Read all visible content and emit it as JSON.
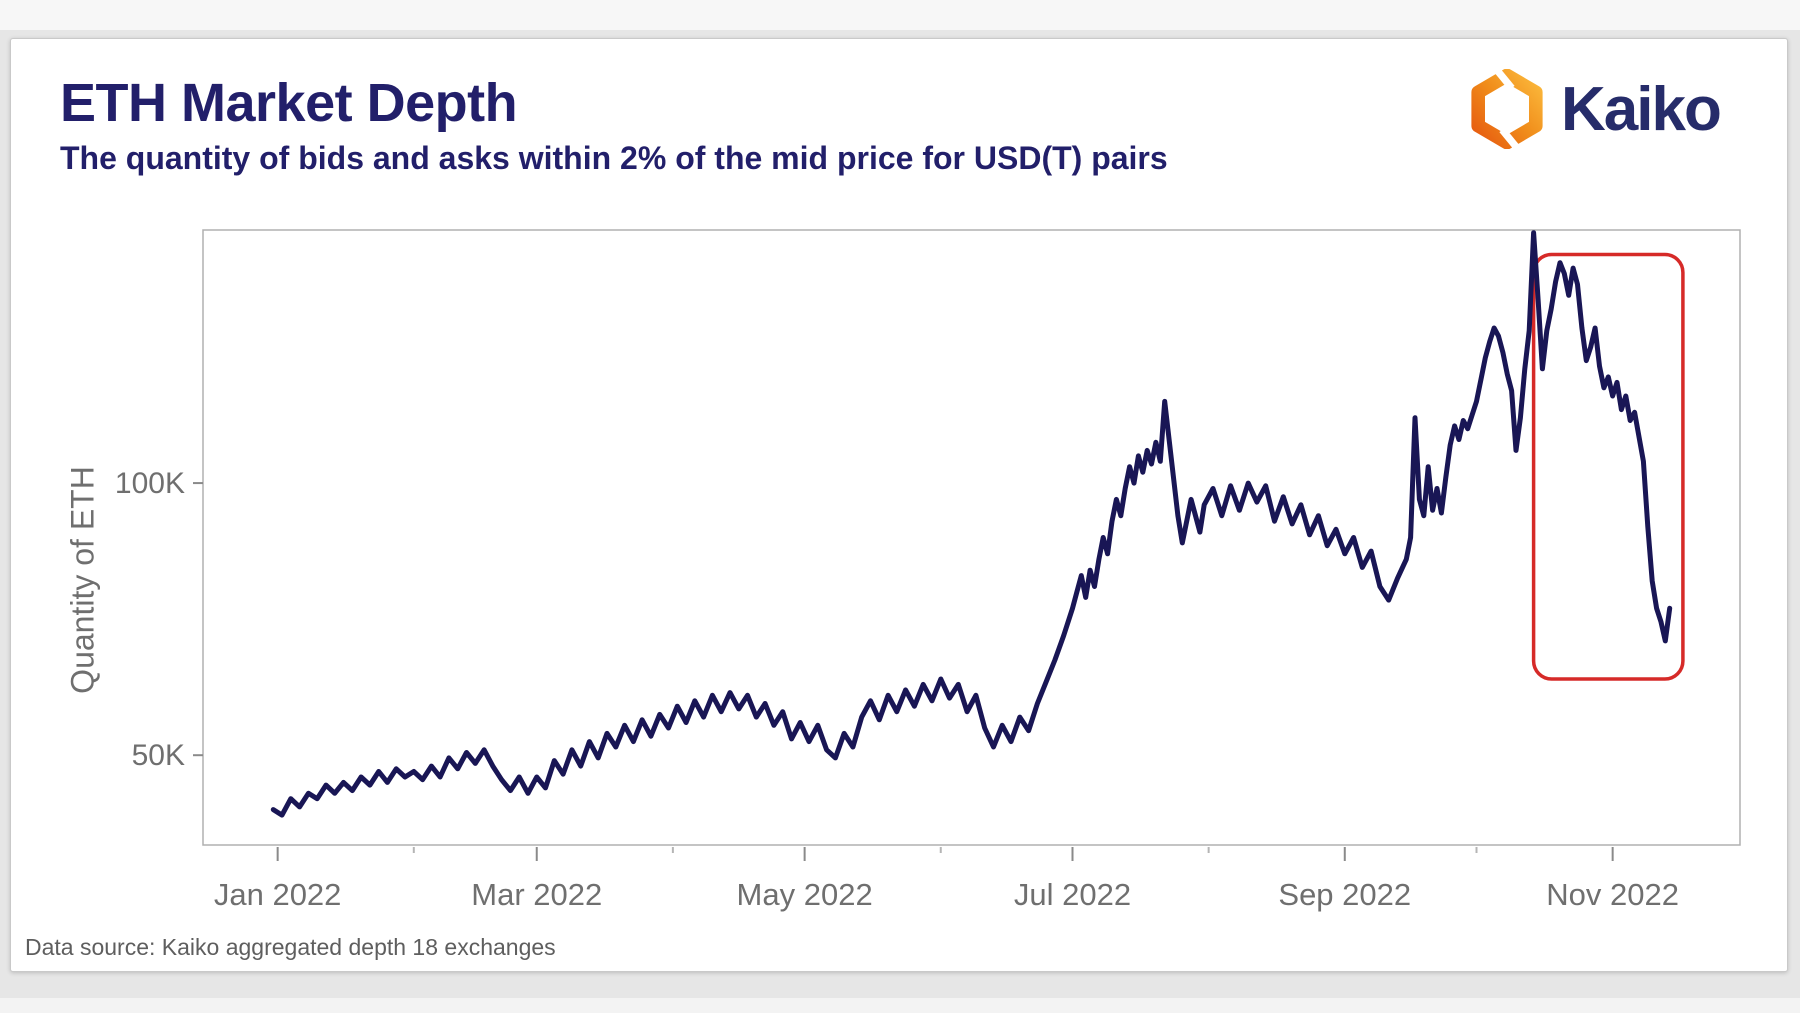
{
  "page": {
    "background": "#e6e6e6",
    "top_strip": "#f7f7f7",
    "card_background": "#ffffff",
    "card_border": "#c9c9c9"
  },
  "header": {
    "title": "ETH Market Depth",
    "subtitle": "The quantity of bids and asks within 2% of the mid price for USD(T) pairs",
    "title_color": "#221f6a"
  },
  "logo": {
    "brand": "Kaiko",
    "text_color": "#262c6a",
    "icon_color_dark": "#e65a10",
    "icon_color_mid": "#f08c1a",
    "icon_color_light": "#fbb93c"
  },
  "footer": {
    "text": "Data source: Kaiko aggregated depth 18 exchanges"
  },
  "axes_style": {
    "axis_color": "#b0b0b0",
    "tick_color": "#8a8a8a",
    "minor_tick_color": "#b5b5b5",
    "tick_label_color": "#6f6f6f"
  },
  "chart_data": {
    "type": "line",
    "title": "ETH Market Depth",
    "subtitle": "The quantity of bids and asks within 2% of the mid price for USD(T) pairs",
    "xlabel": "",
    "ylabel": "Quantity of ETH",
    "grid": false,
    "legend": null,
    "line_color": "#191655",
    "line_width": 5,
    "x_domain": [
      "2021-12-15",
      "2022-11-30"
    ],
    "y_domain": [
      33500,
      146500
    ],
    "y_ticks": [
      {
        "label": "50K",
        "value": 50000
      },
      {
        "label": "100K",
        "value": 100000
      }
    ],
    "x_ticks": [
      {
        "date": "2022-01-01",
        "label": "Jan 2022"
      },
      {
        "date": "2022-02-01",
        "label": null
      },
      {
        "date": "2022-03-01",
        "label": "Mar 2022"
      },
      {
        "date": "2022-04-01",
        "label": null
      },
      {
        "date": "2022-05-01",
        "label": "May 2022"
      },
      {
        "date": "2022-06-01",
        "label": null
      },
      {
        "date": "2022-07-01",
        "label": "Jul 2022"
      },
      {
        "date": "2022-08-01",
        "label": null
      },
      {
        "date": "2022-09-01",
        "label": "Sep 2022"
      },
      {
        "date": "2022-10-01",
        "label": null
      },
      {
        "date": "2022-11-01",
        "label": "Nov 2022"
      }
    ],
    "annotation": {
      "type": "rect",
      "description": "red highlight of the post-FTX-collapse depth drop",
      "x_start": "2022-10-14",
      "x_end": "2022-11-17",
      "y_min": 64000,
      "y_max": 142000,
      "color": "#d62a28"
    },
    "series": [
      {
        "name": "ETH market depth within 2% of mid price (USD/USDT pairs)",
        "points": [
          [
            "2021-12-31",
            40000
          ],
          [
            "2022-01-02",
            39000
          ],
          [
            "2022-01-04",
            42000
          ],
          [
            "2022-01-06",
            40500
          ],
          [
            "2022-01-08",
            43000
          ],
          [
            "2022-01-10",
            42000
          ],
          [
            "2022-01-12",
            44500
          ],
          [
            "2022-01-14",
            43000
          ],
          [
            "2022-01-16",
            45000
          ],
          [
            "2022-01-18",
            43500
          ],
          [
            "2022-01-20",
            46000
          ],
          [
            "2022-01-22",
            44500
          ],
          [
            "2022-01-24",
            47000
          ],
          [
            "2022-01-26",
            45000
          ],
          [
            "2022-01-28",
            47500
          ],
          [
            "2022-01-30",
            46000
          ],
          [
            "2022-02-01",
            47000
          ],
          [
            "2022-02-03",
            45500
          ],
          [
            "2022-02-05",
            48000
          ],
          [
            "2022-02-07",
            46000
          ],
          [
            "2022-02-09",
            49500
          ],
          [
            "2022-02-11",
            47500
          ],
          [
            "2022-02-13",
            50500
          ],
          [
            "2022-02-15",
            48500
          ],
          [
            "2022-02-17",
            51000
          ],
          [
            "2022-02-19",
            48000
          ],
          [
            "2022-02-21",
            45500
          ],
          [
            "2022-02-23",
            43500
          ],
          [
            "2022-02-25",
            46000
          ],
          [
            "2022-02-27",
            43000
          ],
          [
            "2022-03-01",
            46000
          ],
          [
            "2022-03-03",
            44000
          ],
          [
            "2022-03-05",
            49000
          ],
          [
            "2022-03-07",
            46500
          ],
          [
            "2022-03-09",
            51000
          ],
          [
            "2022-03-11",
            48000
          ],
          [
            "2022-03-13",
            52500
          ],
          [
            "2022-03-15",
            49500
          ],
          [
            "2022-03-17",
            54000
          ],
          [
            "2022-03-19",
            51500
          ],
          [
            "2022-03-21",
            55500
          ],
          [
            "2022-03-23",
            52500
          ],
          [
            "2022-03-25",
            56500
          ],
          [
            "2022-03-27",
            53500
          ],
          [
            "2022-03-29",
            57500
          ],
          [
            "2022-03-31",
            55000
          ],
          [
            "2022-04-02",
            59000
          ],
          [
            "2022-04-04",
            56000
          ],
          [
            "2022-04-06",
            60000
          ],
          [
            "2022-04-08",
            57000
          ],
          [
            "2022-04-10",
            61000
          ],
          [
            "2022-04-12",
            58000
          ],
          [
            "2022-04-14",
            61500
          ],
          [
            "2022-04-16",
            58500
          ],
          [
            "2022-04-18",
            61000
          ],
          [
            "2022-04-20",
            57000
          ],
          [
            "2022-04-22",
            59500
          ],
          [
            "2022-04-24",
            55500
          ],
          [
            "2022-04-26",
            58000
          ],
          [
            "2022-04-28",
            53000
          ],
          [
            "2022-04-30",
            56000
          ],
          [
            "2022-05-02",
            52500
          ],
          [
            "2022-05-04",
            55500
          ],
          [
            "2022-05-06",
            51000
          ],
          [
            "2022-05-08",
            49500
          ],
          [
            "2022-05-10",
            54000
          ],
          [
            "2022-05-12",
            51500
          ],
          [
            "2022-05-14",
            57000
          ],
          [
            "2022-05-16",
            60000
          ],
          [
            "2022-05-18",
            56500
          ],
          [
            "2022-05-20",
            61000
          ],
          [
            "2022-05-22",
            58000
          ],
          [
            "2022-05-24",
            62000
          ],
          [
            "2022-05-26",
            59000
          ],
          [
            "2022-05-28",
            63000
          ],
          [
            "2022-05-30",
            60000
          ],
          [
            "2022-06-01",
            64000
          ],
          [
            "2022-06-03",
            60500
          ],
          [
            "2022-06-05",
            63000
          ],
          [
            "2022-06-07",
            58000
          ],
          [
            "2022-06-09",
            61000
          ],
          [
            "2022-06-11",
            55000
          ],
          [
            "2022-06-13",
            51500
          ],
          [
            "2022-06-15",
            55500
          ],
          [
            "2022-06-17",
            52500
          ],
          [
            "2022-06-19",
            57000
          ],
          [
            "2022-06-21",
            54500
          ],
          [
            "2022-06-23",
            59500
          ],
          [
            "2022-06-25",
            63500
          ],
          [
            "2022-06-27",
            67500
          ],
          [
            "2022-06-29",
            72000
          ],
          [
            "2022-07-01",
            77000
          ],
          [
            "2022-07-02",
            80000
          ],
          [
            "2022-07-03",
            83000
          ],
          [
            "2022-07-04",
            79000
          ],
          [
            "2022-07-05",
            84000
          ],
          [
            "2022-07-06",
            81000
          ],
          [
            "2022-07-07",
            86000
          ],
          [
            "2022-07-08",
            90000
          ],
          [
            "2022-07-09",
            87000
          ],
          [
            "2022-07-10",
            93000
          ],
          [
            "2022-07-11",
            97000
          ],
          [
            "2022-07-12",
            94000
          ],
          [
            "2022-07-13",
            99000
          ],
          [
            "2022-07-14",
            103000
          ],
          [
            "2022-07-15",
            100000
          ],
          [
            "2022-07-16",
            105000
          ],
          [
            "2022-07-17",
            102000
          ],
          [
            "2022-07-18",
            106000
          ],
          [
            "2022-07-19",
            103500
          ],
          [
            "2022-07-20",
            107500
          ],
          [
            "2022-07-21",
            104000
          ],
          [
            "2022-07-22",
            115000
          ],
          [
            "2022-07-23",
            108000
          ],
          [
            "2022-07-24",
            101000
          ],
          [
            "2022-07-25",
            94000
          ],
          [
            "2022-07-26",
            89000
          ],
          [
            "2022-07-27",
            93000
          ],
          [
            "2022-07-28",
            97000
          ],
          [
            "2022-07-29",
            94000
          ],
          [
            "2022-07-30",
            91000
          ],
          [
            "2022-07-31",
            96000
          ],
          [
            "2022-08-02",
            99000
          ],
          [
            "2022-08-04",
            94000
          ],
          [
            "2022-08-06",
            99500
          ],
          [
            "2022-08-08",
            95000
          ],
          [
            "2022-08-10",
            100000
          ],
          [
            "2022-08-12",
            96500
          ],
          [
            "2022-08-14",
            99500
          ],
          [
            "2022-08-16",
            93000
          ],
          [
            "2022-08-18",
            97500
          ],
          [
            "2022-08-20",
            92500
          ],
          [
            "2022-08-22",
            96000
          ],
          [
            "2022-08-24",
            90500
          ],
          [
            "2022-08-26",
            94000
          ],
          [
            "2022-08-28",
            88500
          ],
          [
            "2022-08-30",
            91500
          ],
          [
            "2022-09-01",
            87000
          ],
          [
            "2022-09-03",
            90000
          ],
          [
            "2022-09-05",
            84500
          ],
          [
            "2022-09-07",
            87500
          ],
          [
            "2022-09-09",
            81000
          ],
          [
            "2022-09-11",
            78500
          ],
          [
            "2022-09-13",
            82500
          ],
          [
            "2022-09-15",
            86000
          ],
          [
            "2022-09-16",
            90000
          ],
          [
            "2022-09-17",
            112000
          ],
          [
            "2022-09-18",
            97000
          ],
          [
            "2022-09-19",
            94000
          ],
          [
            "2022-09-20",
            103000
          ],
          [
            "2022-09-21",
            95000
          ],
          [
            "2022-09-22",
            99000
          ],
          [
            "2022-09-23",
            94500
          ],
          [
            "2022-09-24",
            101000
          ],
          [
            "2022-09-25",
            107000
          ],
          [
            "2022-09-26",
            110500
          ],
          [
            "2022-09-27",
            108000
          ],
          [
            "2022-09-28",
            111500
          ],
          [
            "2022-09-29",
            110000
          ],
          [
            "2022-09-30",
            112500
          ],
          [
            "2022-10-01",
            115000
          ],
          [
            "2022-10-02",
            119000
          ],
          [
            "2022-10-03",
            123000
          ],
          [
            "2022-10-04",
            126000
          ],
          [
            "2022-10-05",
            128500
          ],
          [
            "2022-10-06",
            127000
          ],
          [
            "2022-10-07",
            124000
          ],
          [
            "2022-10-08",
            120000
          ],
          [
            "2022-10-09",
            117000
          ],
          [
            "2022-10-10",
            106000
          ],
          [
            "2022-10-11",
            112000
          ],
          [
            "2022-10-12",
            121000
          ],
          [
            "2022-10-13",
            128000
          ],
          [
            "2022-10-14",
            146000
          ],
          [
            "2022-10-15",
            134000
          ],
          [
            "2022-10-16",
            121000
          ],
          [
            "2022-10-17",
            128000
          ],
          [
            "2022-10-18",
            132000
          ],
          [
            "2022-10-19",
            137000
          ],
          [
            "2022-10-20",
            140500
          ],
          [
            "2022-10-21",
            138500
          ],
          [
            "2022-10-22",
            134500
          ],
          [
            "2022-10-23",
            139500
          ],
          [
            "2022-10-24",
            136500
          ],
          [
            "2022-10-25",
            128500
          ],
          [
            "2022-10-26",
            122500
          ],
          [
            "2022-10-27",
            125000
          ],
          [
            "2022-10-28",
            128500
          ],
          [
            "2022-10-29",
            121500
          ],
          [
            "2022-10-30",
            117500
          ],
          [
            "2022-10-31",
            119500
          ],
          [
            "2022-11-01",
            116000
          ],
          [
            "2022-11-02",
            118500
          ],
          [
            "2022-11-03",
            113500
          ],
          [
            "2022-11-04",
            116000
          ],
          [
            "2022-11-05",
            111500
          ],
          [
            "2022-11-06",
            113000
          ],
          [
            "2022-11-07",
            108500
          ],
          [
            "2022-11-08",
            104000
          ],
          [
            "2022-11-09",
            92000
          ],
          [
            "2022-11-10",
            82000
          ],
          [
            "2022-11-11",
            77000
          ],
          [
            "2022-11-12",
            74500
          ],
          [
            "2022-11-13",
            71000
          ],
          [
            "2022-11-14",
            77000
          ]
        ]
      }
    ]
  }
}
